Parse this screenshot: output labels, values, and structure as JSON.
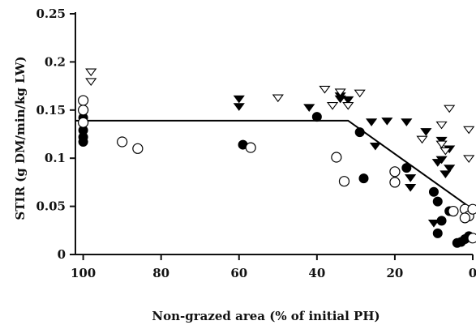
{
  "chart_data": {
    "type": "scatter",
    "title": "",
    "xlabel": "Non-grazed area (% of initial PH)",
    "ylabel": "STIR (g DM/min/kg LW)",
    "xlim": [
      102,
      0
    ],
    "ylim": [
      0,
      0.25
    ],
    "x_reversed": true,
    "x_ticks": [
      100,
      80,
      60,
      40,
      20,
      0
    ],
    "x_tick_labels": [
      "100",
      "80",
      "60",
      "40",
      "20",
      "0"
    ],
    "y_ticks": [
      0,
      0.05,
      0.1,
      0.15,
      0.2,
      0.25
    ],
    "y_tick_labels": [
      "0",
      "0.05",
      "0.1",
      "0.15",
      "0.2",
      "0.25"
    ],
    "grid": false,
    "legend": "none",
    "series": [
      {
        "marker": "filled-circle",
        "color": "#000000",
        "points": [
          [
            100,
            0.142
          ],
          [
            100,
            0.129
          ],
          [
            100,
            0.122
          ],
          [
            100,
            0.117
          ],
          [
            59,
            0.114
          ],
          [
            40,
            0.143
          ],
          [
            29,
            0.127
          ],
          [
            28,
            0.079
          ],
          [
            17,
            0.09
          ],
          [
            10,
            0.065
          ],
          [
            9,
            0.055
          ],
          [
            8,
            0.035
          ],
          [
            9,
            0.022
          ],
          [
            6,
            0.045
          ],
          [
            4,
            0.012
          ],
          [
            3,
            0.013
          ],
          [
            2,
            0.016
          ],
          [
            1,
            0.019
          ]
        ]
      },
      {
        "marker": "open-circle",
        "color": "#000000",
        "points": [
          [
            100,
            0.16
          ],
          [
            100,
            0.15
          ],
          [
            100,
            0.137
          ],
          [
            90,
            0.117
          ],
          [
            86,
            0.11
          ],
          [
            57,
            0.111
          ],
          [
            35,
            0.101
          ],
          [
            33,
            0.076
          ],
          [
            20,
            0.086
          ],
          [
            20,
            0.075
          ],
          [
            5,
            0.045
          ],
          [
            2,
            0.047
          ],
          [
            1,
            0.04
          ],
          [
            2,
            0.038
          ],
          [
            0,
            0.047
          ],
          [
            0,
            0.017
          ]
        ]
      },
      {
        "marker": "filled-triangle-down",
        "color": "#000000",
        "points": [
          [
            60,
            0.162
          ],
          [
            60,
            0.154
          ],
          [
            42,
            0.153
          ],
          [
            34,
            0.165
          ],
          [
            34,
            0.162
          ],
          [
            32,
            0.161
          ],
          [
            26,
            0.138
          ],
          [
            25,
            0.113
          ],
          [
            22,
            0.139
          ],
          [
            17,
            0.138
          ],
          [
            16,
            0.08
          ],
          [
            16,
            0.07
          ],
          [
            12,
            0.128
          ],
          [
            10,
            0.033
          ],
          [
            8,
            0.119
          ],
          [
            8,
            0.099
          ],
          [
            9,
            0.096
          ],
          [
            6,
            0.09
          ],
          [
            7,
            0.084
          ],
          [
            6,
            0.11
          ]
        ]
      },
      {
        "marker": "open-triangle-down",
        "color": "#000000",
        "points": [
          [
            98,
            0.19
          ],
          [
            98,
            0.18
          ],
          [
            50,
            0.163
          ],
          [
            38,
            0.172
          ],
          [
            36,
            0.155
          ],
          [
            34,
            0.169
          ],
          [
            32,
            0.155
          ],
          [
            29,
            0.168
          ],
          [
            13,
            0.12
          ],
          [
            8,
            0.135
          ],
          [
            8,
            0.115
          ],
          [
            7,
            0.108
          ],
          [
            6,
            0.152
          ],
          [
            1,
            0.13
          ],
          [
            1,
            0.1
          ]
        ]
      }
    ],
    "fit_line": {
      "points": [
        [
          102,
          0.139
        ],
        [
          32,
          0.139
        ],
        [
          -1,
          0.044
        ]
      ]
    }
  }
}
